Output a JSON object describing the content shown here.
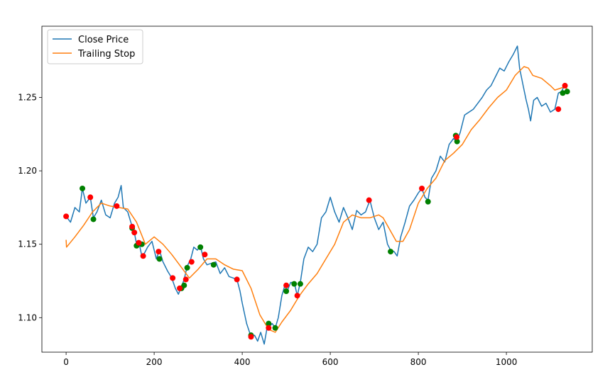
{
  "chart_data": {
    "type": "line",
    "title": "",
    "xlabel": "",
    "ylabel": "",
    "xlim": [
      -55,
      1195
    ],
    "ylim": [
      1.0765,
      1.2985
    ],
    "x_ticks": [
      0,
      200,
      400,
      600,
      800,
      1000
    ],
    "x_tick_labels": [
      "0",
      "200",
      "400",
      "600",
      "800",
      "1000"
    ],
    "y_ticks": [
      1.1,
      1.15,
      1.2,
      1.25
    ],
    "y_tick_labels": [
      "1.10",
      "1.15",
      "1.20",
      "1.25"
    ],
    "grid": false,
    "legend": {
      "placement": "upper-left",
      "entries": [
        "Close Price",
        "Trailing Stop"
      ]
    },
    "colors": {
      "close": "#1f77b4",
      "stop": "#ff7f0e",
      "buy": "#008000",
      "sell": "#ff0000"
    },
    "series": [
      {
        "name": "Close Price",
        "x": [
          0,
          10,
          20,
          30,
          37,
          45,
          55,
          62,
          70,
          80,
          90,
          100,
          110,
          118,
          125,
          130,
          140,
          150,
          155,
          160,
          165,
          172,
          178,
          185,
          195,
          205,
          212,
          220,
          230,
          240,
          248,
          255,
          262,
          268,
          275,
          283,
          290,
          298,
          305,
          312,
          320,
          330,
          340,
          350,
          360,
          370,
          380,
          388,
          395,
          400,
          410,
          420,
          428,
          435,
          442,
          450,
          458,
          462,
          468,
          475,
          482,
          490,
          497,
          502,
          510,
          518,
          525,
          532,
          540,
          550,
          560,
          570,
          580,
          590,
          600,
          610,
          620,
          630,
          640,
          650,
          660,
          670,
          680,
          690,
          700,
          710,
          720,
          730,
          737,
          745,
          752,
          760,
          770,
          780,
          790,
          800,
          808,
          815,
          822,
          830,
          840,
          850,
          860,
          870,
          880,
          887,
          895,
          905,
          915,
          925,
          935,
          945,
          955,
          965,
          975,
          985,
          995,
          1005,
          1015,
          1025,
          1030,
          1038,
          1045,
          1050,
          1055,
          1062,
          1070,
          1080,
          1090,
          1100,
          1110,
          1118,
          1125,
          1132,
          1138
        ],
        "y": [
          1.169,
          1.165,
          1.175,
          1.172,
          1.188,
          1.178,
          1.182,
          1.168,
          1.172,
          1.18,
          1.17,
          1.168,
          1.178,
          1.182,
          1.19,
          1.175,
          1.172,
          1.162,
          1.158,
          1.15,
          1.152,
          1.142,
          1.144,
          1.148,
          1.152,
          1.14,
          1.146,
          1.138,
          1.132,
          1.127,
          1.12,
          1.116,
          1.121,
          1.126,
          1.135,
          1.14,
          1.148,
          1.146,
          1.149,
          1.14,
          1.136,
          1.137,
          1.138,
          1.13,
          1.134,
          1.128,
          1.127,
          1.126,
          1.118,
          1.11,
          1.096,
          1.087,
          1.088,
          1.084,
          1.09,
          1.082,
          1.096,
          1.094,
          1.096,
          1.093,
          1.1,
          1.115,
          1.122,
          1.118,
          1.124,
          1.124,
          1.115,
          1.124,
          1.14,
          1.148,
          1.145,
          1.15,
          1.168,
          1.172,
          1.182,
          1.172,
          1.165,
          1.175,
          1.168,
          1.16,
          1.173,
          1.17,
          1.172,
          1.18,
          1.168,
          1.16,
          1.165,
          1.15,
          1.146,
          1.145,
          1.142,
          1.155,
          1.165,
          1.176,
          1.18,
          1.185,
          1.188,
          1.182,
          1.18,
          1.195,
          1.2,
          1.21,
          1.206,
          1.218,
          1.222,
          1.22,
          1.226,
          1.238,
          1.24,
          1.242,
          1.246,
          1.25,
          1.255,
          1.258,
          1.264,
          1.27,
          1.268,
          1.274,
          1.279,
          1.285,
          1.27,
          1.258,
          1.248,
          1.242,
          1.234,
          1.248,
          1.25,
          1.244,
          1.246,
          1.24,
          1.242,
          1.253,
          1.254,
          1.258,
          1.255
        ]
      },
      {
        "name": "Trailing Stop",
        "x": [
          0,
          1,
          20,
          40,
          60,
          80,
          100,
          120,
          140,
          160,
          180,
          200,
          220,
          240,
          260,
          280,
          300,
          320,
          340,
          360,
          380,
          400,
          420,
          440,
          460,
          475,
          490,
          510,
          530,
          550,
          570,
          590,
          610,
          630,
          650,
          670,
          690,
          710,
          720,
          735,
          750,
          765,
          780,
          800,
          820,
          840,
          860,
          880,
          900,
          920,
          940,
          960,
          980,
          1000,
          1020,
          1040,
          1050,
          1060,
          1080,
          1100,
          1110,
          1120,
          1130,
          1138
        ],
        "y": [
          1.153,
          1.148,
          1.155,
          1.163,
          1.172,
          1.178,
          1.176,
          1.175,
          1.174,
          1.165,
          1.15,
          1.155,
          1.15,
          1.143,
          1.135,
          1.127,
          1.133,
          1.14,
          1.14,
          1.136,
          1.133,
          1.132,
          1.12,
          1.102,
          1.092,
          1.09,
          1.097,
          1.105,
          1.115,
          1.123,
          1.13,
          1.14,
          1.15,
          1.165,
          1.17,
          1.168,
          1.168,
          1.17,
          1.168,
          1.16,
          1.152,
          1.152,
          1.16,
          1.178,
          1.188,
          1.195,
          1.207,
          1.212,
          1.218,
          1.228,
          1.235,
          1.243,
          1.25,
          1.255,
          1.265,
          1.271,
          1.27,
          1.265,
          1.263,
          1.258,
          1.255,
          1.256,
          1.257,
          1.256
        ]
      }
    ],
    "buy_markers": {
      "x": [
        37,
        62,
        150,
        160,
        172,
        212,
        262,
        268,
        275,
        305,
        335,
        420,
        460,
        475,
        500,
        518,
        532,
        737,
        822,
        885,
        888,
        1128,
        1138
      ],
      "y": [
        1.188,
        1.167,
        1.161,
        1.149,
        1.15,
        1.14,
        1.12,
        1.122,
        1.134,
        1.148,
        1.136,
        1.088,
        1.096,
        1.093,
        1.118,
        1.123,
        1.123,
        1.145,
        1.179,
        1.224,
        1.22,
        1.253,
        1.254
      ]
    },
    "sell_markers": {
      "x": [
        0,
        55,
        115,
        150,
        155,
        165,
        175,
        210,
        242,
        258,
        272,
        285,
        315,
        388,
        420,
        460,
        500,
        525,
        688,
        808,
        887,
        1118,
        1133
      ],
      "y": [
        1.169,
        1.182,
        1.176,
        1.162,
        1.158,
        1.151,
        1.142,
        1.145,
        1.127,
        1.12,
        1.126,
        1.138,
        1.143,
        1.126,
        1.087,
        1.093,
        1.122,
        1.115,
        1.18,
        1.188,
        1.223,
        1.242,
        1.258
      ]
    }
  }
}
